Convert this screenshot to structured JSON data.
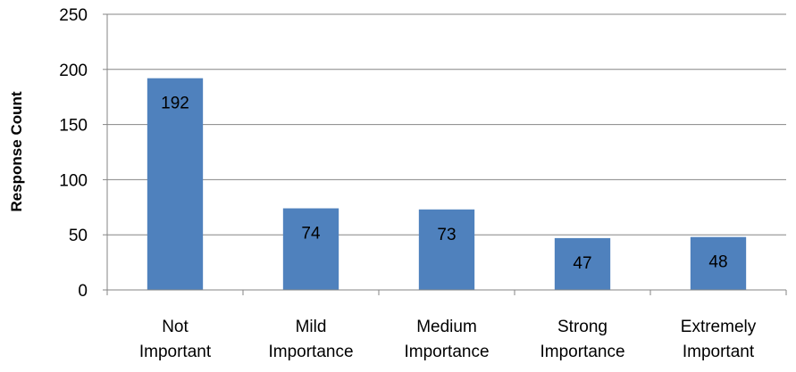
{
  "chart_data": {
    "type": "bar",
    "title": "",
    "xlabel": "",
    "ylabel": "Response Count",
    "ylim": [
      0,
      250
    ],
    "yticks": [
      0,
      50,
      100,
      150,
      200,
      250
    ],
    "grid": true,
    "legend": "none",
    "bar_color": "#4F81BD",
    "grid_color": "#868686",
    "categories": [
      [
        "Not",
        "Important"
      ],
      [
        "Mild",
        "Importance"
      ],
      [
        "Medium",
        "Importance"
      ],
      [
        "Strong",
        "Importance"
      ],
      [
        "Extremely",
        "Important"
      ]
    ],
    "values": [
      192,
      74,
      73,
      47,
      48
    ],
    "data_labels": [
      "192",
      "74",
      "73",
      "47",
      "48"
    ]
  }
}
